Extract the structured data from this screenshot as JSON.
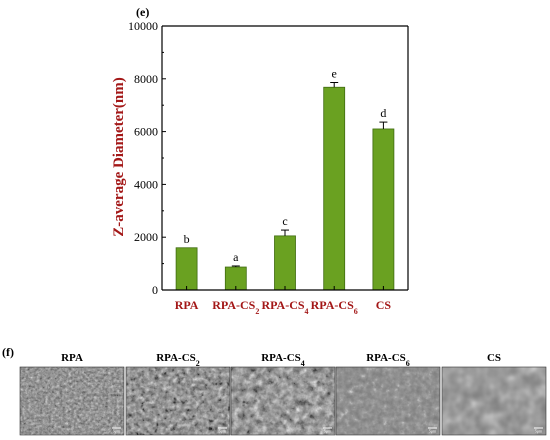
{
  "panel_e_label": "(e)",
  "panel_f_label": "(f)",
  "colors": {
    "bar_fill": "#6aa121",
    "bar_stroke": "#3f6b10",
    "label_red": "#a31717"
  },
  "chart_data": {
    "type": "bar",
    "title": "",
    "xlabel": "",
    "ylabel": "Z-average Diameter(nm)",
    "ylim": [
      0,
      10000
    ],
    "yticks": [
      0,
      2000,
      4000,
      6000,
      8000,
      10000
    ],
    "grid": false,
    "categories": [
      {
        "base": "RPA",
        "sub": ""
      },
      {
        "base": "RPA-CS",
        "sub": "2"
      },
      {
        "base": "RPA-CS",
        "sub": "4"
      },
      {
        "base": "RPA-CS",
        "sub": "6"
      },
      {
        "base": "CS",
        "sub": ""
      }
    ],
    "values": [
      1600,
      870,
      2050,
      7680,
      6100
    ],
    "errors": [
      0,
      40,
      220,
      180,
      260
    ],
    "significance": [
      "b",
      "a",
      "c",
      "e",
      "d"
    ]
  },
  "sem_panels": [
    {
      "base": "RPA",
      "sub": "",
      "scale": "5μm"
    },
    {
      "base": "RPA-CS",
      "sub": "2",
      "scale": "5μm"
    },
    {
      "base": "RPA-CS",
      "sub": "4",
      "scale": "5μm"
    },
    {
      "base": "RPA-CS",
      "sub": "6",
      "scale": "5μm"
    },
    {
      "base": "CS",
      "sub": "",
      "scale": "5μm"
    }
  ]
}
